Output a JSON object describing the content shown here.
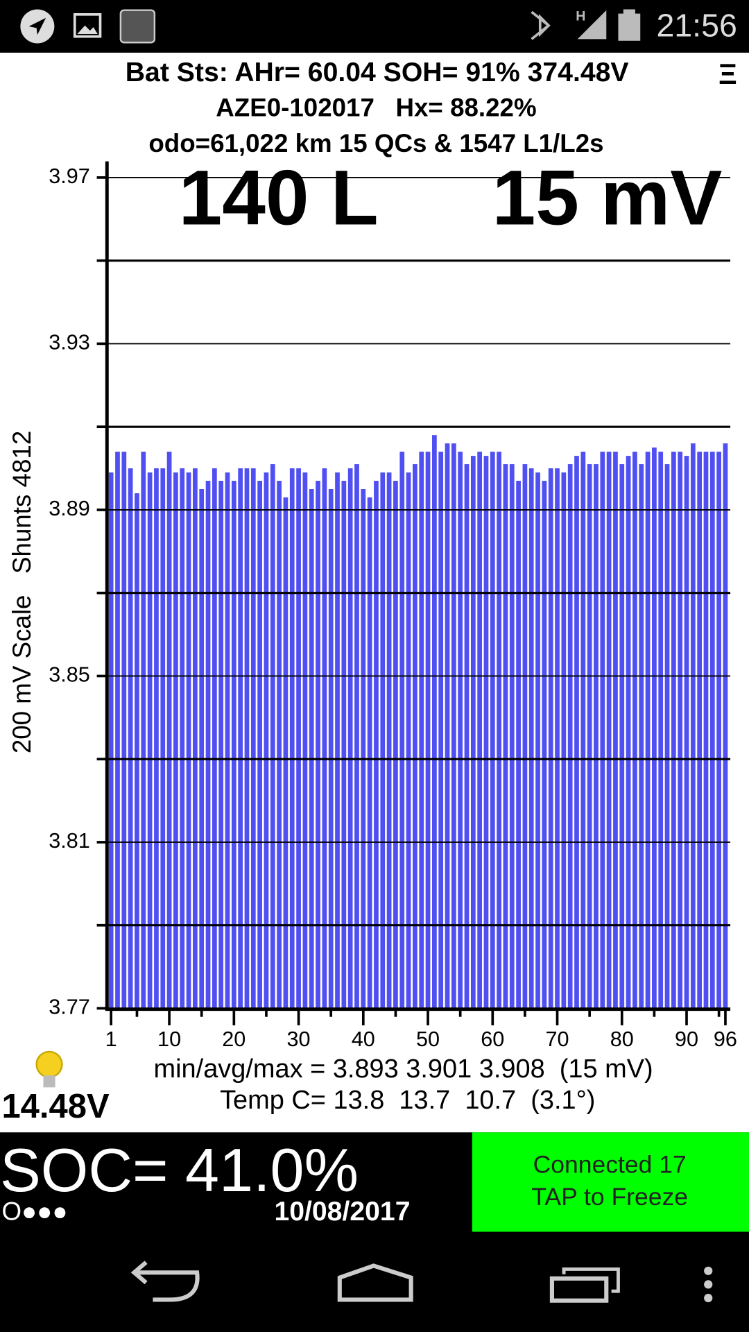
{
  "status_bar": {
    "time": "21:56"
  },
  "header": {
    "lines": [
      "Bat Sts: AHr= 60.04 SOH= 91% 374.48V",
      "AZE0-102017   Hx= 88.22%",
      "odo=61,022 km 15 QCs & 1547 L1/L2s"
    ],
    "menu": "Ξ"
  },
  "overlay": {
    "cells": "140 L",
    "spread": "15 mV"
  },
  "chart_data": {
    "type": "bar",
    "ylabel": "200 mV Scale   Shunts 4812",
    "color": "#4f4ff2",
    "x": [
      1,
      2,
      3,
      4,
      5,
      6,
      7,
      8,
      9,
      10,
      11,
      12,
      13,
      14,
      15,
      16,
      17,
      18,
      19,
      20,
      21,
      22,
      23,
      24,
      25,
      26,
      27,
      28,
      29,
      30,
      31,
      32,
      33,
      34,
      35,
      36,
      37,
      38,
      39,
      40,
      41,
      42,
      43,
      44,
      45,
      46,
      47,
      48,
      49,
      50,
      51,
      52,
      53,
      54,
      55,
      56,
      57,
      58,
      59,
      60,
      61,
      62,
      63,
      64,
      65,
      66,
      67,
      68,
      69,
      70,
      71,
      72,
      73,
      74,
      75,
      76,
      77,
      78,
      79,
      80,
      81,
      82,
      83,
      84,
      85,
      86,
      87,
      88,
      89,
      90,
      91,
      92,
      93,
      94,
      95,
      96
    ],
    "values": [
      3.899,
      3.904,
      3.904,
      3.9,
      3.894,
      3.904,
      3.899,
      3.9,
      3.9,
      3.904,
      3.899,
      3.9,
      3.899,
      3.9,
      3.895,
      3.897,
      3.9,
      3.897,
      3.899,
      3.897,
      3.9,
      3.9,
      3.9,
      3.897,
      3.899,
      3.901,
      3.897,
      3.893,
      3.9,
      3.9,
      3.899,
      3.895,
      3.897,
      3.9,
      3.895,
      3.899,
      3.897,
      3.9,
      3.901,
      3.895,
      3.893,
      3.897,
      3.899,
      3.899,
      3.897,
      3.904,
      3.899,
      3.901,
      3.904,
      3.904,
      3.908,
      3.904,
      3.906,
      3.906,
      3.904,
      3.901,
      3.903,
      3.904,
      3.903,
      3.904,
      3.904,
      3.901,
      3.901,
      3.897,
      3.901,
      3.9,
      3.899,
      3.897,
      3.9,
      3.9,
      3.899,
      3.901,
      3.903,
      3.904,
      3.901,
      3.901,
      3.904,
      3.904,
      3.904,
      3.901,
      3.903,
      3.904,
      3.901,
      3.904,
      3.905,
      3.904,
      3.901,
      3.904,
      3.904,
      3.903,
      3.906,
      3.904,
      3.904,
      3.904,
      3.904,
      3.906
    ],
    "xlim": [
      0.5,
      96.5
    ],
    "xticks": [
      1,
      10,
      20,
      30,
      40,
      50,
      60,
      70,
      80,
      90,
      96
    ],
    "xticks_minor": [
      5,
      15,
      25,
      35,
      45,
      55,
      65,
      75,
      85,
      95
    ],
    "ylim": [
      3.77,
      3.97
    ],
    "yticks": [
      3.77,
      3.81,
      3.85,
      3.89,
      3.93,
      3.97
    ],
    "yticks_minor": [
      3.79,
      3.83,
      3.87,
      3.91,
      3.95
    ],
    "grid": true
  },
  "stats": {
    "lines": [
      "min/avg/max = 3.893 3.901 3.908  (15 mV)",
      "Temp C= 13.8  13.7  10.7  (3.1°)"
    ]
  },
  "aux_voltage": "14.48V",
  "soc": "SOC= 41.0%",
  "dots": "O●●●",
  "date": "10/08/2017",
  "button": {
    "lines": [
      "Connected 17",
      "TAP to Freeze"
    ]
  }
}
